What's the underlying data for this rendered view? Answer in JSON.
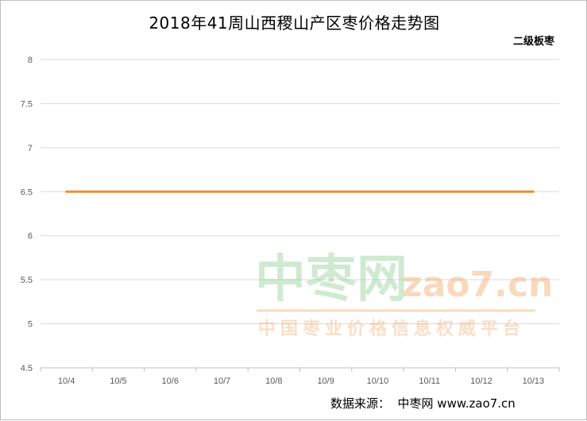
{
  "chart_data": {
    "type": "line",
    "title": "2018年41周山西稷山产区枣价格走势图",
    "categories": [
      "10/4",
      "10/5",
      "10/6",
      "10/7",
      "10/8",
      "10/9",
      "10/10",
      "10/11",
      "10/12",
      "10/13"
    ],
    "series": [
      {
        "name": "二级板枣",
        "values": [
          6.5,
          6.5,
          6.5,
          6.5,
          6.5,
          6.5,
          6.5,
          6.5,
          6.5,
          6.5
        ],
        "color": "#f28e2b"
      }
    ],
    "ylim": [
      4.5,
      8
    ],
    "yticks": [
      "4.5",
      "5",
      "5.5",
      "6",
      "6.5",
      "7",
      "7.5",
      "8"
    ],
    "grid": true,
    "legend": "top-right"
  },
  "watermark": {
    "main": "中枣网",
    "url": "zao7.cn",
    "sub": "中国枣业价格信息权威平台"
  },
  "source": "数据来源：  中枣网 www.zao7.cn"
}
